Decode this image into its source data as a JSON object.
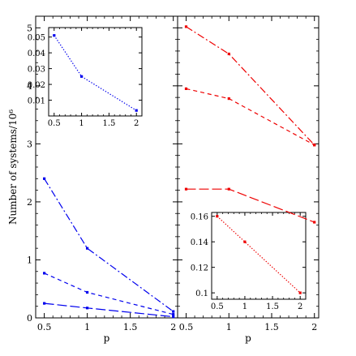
{
  "chart_data": [
    {
      "type": "line",
      "panel": "left",
      "xlabel": "p",
      "ylabel": "Number of systems/10⁶",
      "xlim": [
        0.4,
        2.05
      ],
      "ylim": [
        0,
        5.2
      ],
      "xticks": [
        "0.5",
        "1",
        "1.5",
        "2"
      ],
      "yticks": [
        "0",
        "1",
        "2",
        "3",
        "4",
        "5"
      ],
      "color": "#0000ee",
      "series": [
        {
          "style": "dash-dot",
          "x": [
            0.5,
            1,
            2
          ],
          "y": [
            2.4,
            1.2,
            0.11
          ]
        },
        {
          "style": "short-dash",
          "x": [
            0.5,
            1,
            2
          ],
          "y": [
            0.77,
            0.44,
            0.06
          ]
        },
        {
          "style": "long-dash",
          "x": [
            0.5,
            1,
            2
          ],
          "y": [
            0.25,
            0.17,
            0.02
          ]
        }
      ]
    },
    {
      "type": "line",
      "panel": "right",
      "xlabel": "p",
      "xlim": [
        0.4,
        2.05
      ],
      "ylim": [
        0,
        5.2
      ],
      "xticks": [
        "0.5",
        "1",
        "1.5",
        "2"
      ],
      "color": "#ee0000",
      "series": [
        {
          "style": "dash-dot",
          "x": [
            0.5,
            1,
            2
          ],
          "y": [
            5.02,
            4.55,
            2.98
          ]
        },
        {
          "style": "short-dash",
          "x": [
            0.5,
            1,
            2
          ],
          "y": [
            3.95,
            3.78,
            2.98
          ]
        },
        {
          "style": "long-dash",
          "x": [
            0.5,
            1,
            2
          ],
          "y": [
            2.22,
            2.22,
            1.65
          ]
        }
      ]
    },
    {
      "type": "line",
      "panel": "left-inset",
      "xlim": [
        0.4,
        2.1
      ],
      "ylim": [
        0,
        0.056
      ],
      "xticks": [
        "0.5",
        "1",
        "1.5",
        "2"
      ],
      "yticks": [
        "0.01",
        "0.02",
        "0.03",
        "0.04",
        "0.05"
      ],
      "color": "#0000ee",
      "series": [
        {
          "style": "dotted",
          "x": [
            0.5,
            1,
            2
          ],
          "y": [
            0.051,
            0.025,
            0.0035
          ]
        }
      ]
    },
    {
      "type": "line",
      "panel": "right-inset",
      "xlim": [
        0.4,
        2.1
      ],
      "ylim": [
        0.095,
        0.163
      ],
      "xticks": [
        "0.5",
        "1",
        "1.5",
        "2"
      ],
      "yticks": [
        "0.1",
        "0.12",
        "0.14",
        "0.16"
      ],
      "color": "#ee0000",
      "series": [
        {
          "style": "dotted",
          "x": [
            0.5,
            1,
            2
          ],
          "y": [
            0.16,
            0.14,
            0.1
          ]
        }
      ]
    }
  ]
}
